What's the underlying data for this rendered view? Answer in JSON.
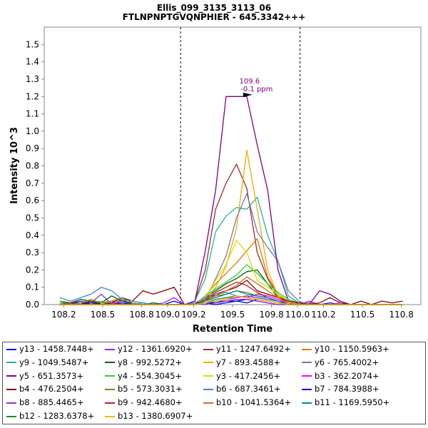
{
  "chart_data": {
    "type": "line",
    "title": "Ellis_099_3135_3113_06",
    "subtitle": "FTLNPNPTGVQNPHIER - 645.3342+++",
    "xlabel": "Retention Time",
    "ylabel": "Intensity 10^3",
    "xlim": [
      108.05,
      110.95
    ],
    "ylim": [
      0,
      1.6
    ],
    "x_ticks": [
      "108.2",
      "108.5",
      "108.8",
      "109.0",
      "109.2",
      "109.5",
      "109.8",
      "110.0",
      "110.2",
      "110.5",
      "110.8"
    ],
    "y_ticks": [
      "0.0",
      "0.1",
      "0.2",
      "0.3",
      "0.4",
      "0.5",
      "0.6",
      "0.7",
      "0.8",
      "0.9",
      "1.0",
      "1.1",
      "1.2",
      "1.3",
      "1.4",
      "1.5"
    ],
    "boundaries": [
      109.1,
      110.02
    ],
    "annotation": {
      "x": 109.62,
      "y": 1.21,
      "line1": "109.6",
      "line2": "-0.1 ppm",
      "color": "#800080"
    },
    "x": [
      108.17,
      108.25,
      108.33,
      108.41,
      108.49,
      108.57,
      108.65,
      108.73,
      108.81,
      108.89,
      108.97,
      109.05,
      109.13,
      109.21,
      109.29,
      109.37,
      109.45,
      109.53,
      109.61,
      109.69,
      109.77,
      109.85,
      109.93,
      110.01,
      110.09,
      110.17,
      110.25,
      110.33,
      110.41,
      110.49,
      110.57,
      110.65,
      110.73,
      110.81
    ],
    "series": [
      {
        "name": "y13 - 1458.7448+",
        "color": "#0000dd",
        "values": [
          0.01,
          0,
          0.02,
          0,
          0.01,
          0.02,
          0,
          0.01,
          0,
          0.01,
          0,
          0.02,
          0,
          0,
          0.01,
          0,
          0.01,
          0.02,
          0.01,
          0.03,
          0.02,
          0.01,
          0,
          0.01,
          0,
          0,
          0.01,
          0,
          0,
          0,
          0,
          0,
          0,
          0
        ]
      },
      {
        "name": "y12 - 1361.6920+",
        "color": "#8a2be2",
        "values": [
          0,
          0.01,
          0.02,
          0.01,
          0.06,
          0,
          0.02,
          0,
          0.01,
          0,
          0.01,
          0.04,
          0,
          0.01,
          0,
          0.02,
          0.03,
          0.04,
          0.05,
          0.04,
          0.03,
          0.02,
          0.01,
          0,
          0.02,
          0,
          0,
          0.01,
          0,
          0,
          0,
          0,
          0,
          0
        ]
      },
      {
        "name": "y11 - 1247.6492+",
        "color": "#a52a2a",
        "values": [
          0,
          0,
          0,
          0.01,
          0,
          0,
          0.03,
          0,
          0,
          0,
          0,
          0,
          0,
          0.02,
          0.2,
          0.55,
          0.7,
          0.81,
          0.67,
          0.3,
          0.15,
          0.05,
          0.02,
          0,
          0.01,
          0,
          0,
          0,
          0,
          0,
          0,
          0,
          0,
          0
        ]
      },
      {
        "name": "y10 - 1150.5963+",
        "color": "#e07b00",
        "values": [
          0.01,
          0,
          0.01,
          0,
          0,
          0.02,
          0,
          0,
          0,
          0,
          0,
          0,
          0,
          0,
          0.05,
          0.12,
          0.18,
          0.24,
          0.31,
          0.38,
          0.16,
          0.06,
          0.02,
          0,
          0,
          0,
          0,
          0,
          0,
          0,
          0,
          0,
          0,
          0
        ]
      },
      {
        "name": "y9 - 1049.5487+",
        "color": "#20b2aa",
        "values": [
          0.01,
          0,
          0.01,
          0.02,
          0,
          0,
          0.01,
          0,
          0.01,
          0,
          0,
          0,
          0,
          0.02,
          0.15,
          0.42,
          0.51,
          0.56,
          0.55,
          0.62,
          0.4,
          0.25,
          0.05,
          0.01,
          0,
          0,
          0,
          0,
          0,
          0,
          0,
          0,
          0,
          0
        ]
      },
      {
        "name": "y8 - 992.5272+",
        "color": "#006400",
        "values": [
          0.02,
          0.01,
          0.03,
          0.02,
          0.01,
          0.05,
          0.02,
          0.01,
          0,
          0.01,
          0,
          0,
          0,
          0,
          0.04,
          0.08,
          0.12,
          0.15,
          0.19,
          0.2,
          0.12,
          0.04,
          0.01,
          0,
          0,
          0,
          0,
          0,
          0,
          0,
          0,
          0,
          0,
          0
        ]
      },
      {
        "name": "y7 - 893.4588+",
        "color": "#ffa500",
        "values": [
          0,
          0,
          0,
          0,
          0,
          0,
          0,
          0,
          0,
          0,
          0,
          0,
          0,
          0,
          0.02,
          0.1,
          0.22,
          0.44,
          0.89,
          0.55,
          0.2,
          0.05,
          0.01,
          0,
          0,
          0,
          0,
          0,
          0,
          0,
          0,
          0,
          0,
          0
        ]
      },
      {
        "name": "y6 - 765.4002+",
        "color": "#7777bb",
        "values": [
          0,
          0,
          0,
          0,
          0,
          0,
          0,
          0,
          0,
          0,
          0,
          0,
          0,
          0,
          0.03,
          0.15,
          0.28,
          0.5,
          0.64,
          0.42,
          0.33,
          0.25,
          0.08,
          0.02,
          0,
          0,
          0,
          0,
          0,
          0,
          0,
          0,
          0,
          0
        ]
      },
      {
        "name": "y5 - 651.3573+",
        "color": "#800080",
        "values": [
          0,
          0,
          0.01,
          0,
          0,
          0.01,
          0,
          0,
          0,
          0,
          0,
          0,
          0,
          0.02,
          0.31,
          0.66,
          1.2,
          1.2,
          1.2,
          0.92,
          0.66,
          0.2,
          0.02,
          0.01,
          0,
          0.08,
          0.06,
          0.02,
          0,
          0,
          0,
          0,
          0,
          0
        ]
      },
      {
        "name": "y4 - 554.3045+",
        "color": "#32cd32",
        "values": [
          0.01,
          0,
          0,
          0.01,
          0.02,
          0,
          0.01,
          0,
          0.01,
          0,
          0,
          0,
          0,
          0,
          0.05,
          0.09,
          0.13,
          0.17,
          0.23,
          0.18,
          0.12,
          0.07,
          0.03,
          0.01,
          0,
          0,
          0,
          0,
          0,
          0,
          0,
          0,
          0,
          0
        ]
      },
      {
        "name": "y3 - 417.2456+",
        "color": "#dddd00",
        "values": [
          0,
          0,
          0,
          0,
          0,
          0,
          0,
          0,
          0,
          0,
          0,
          0,
          0,
          0,
          0.04,
          0.14,
          0.23,
          0.37,
          0.3,
          0.14,
          0.1,
          0.06,
          0.02,
          0,
          0,
          0,
          0,
          0,
          0,
          0,
          0,
          0,
          0,
          0
        ]
      },
      {
        "name": "b3 - 362.2074+",
        "color": "#ff00ff",
        "values": [
          0,
          0,
          0,
          0,
          0,
          0.01,
          0,
          0,
          0,
          0,
          0,
          0,
          0,
          0,
          0.01,
          0.02,
          0.03,
          0.05,
          0.04,
          0.06,
          0.05,
          0.03,
          0.01,
          0,
          0,
          0,
          0,
          0,
          0,
          0,
          0,
          0,
          0,
          0
        ]
      },
      {
        "name": "b4 - 476.2504+",
        "color": "#8b0000",
        "values": [
          0,
          0.01,
          0,
          0.02,
          0,
          0.01,
          0.04,
          0.02,
          0.08,
          0.06,
          0.08,
          0.1,
          0,
          0.01,
          0.02,
          0.06,
          0.08,
          0.1,
          0.14,
          0.08,
          0.06,
          0.04,
          0.02,
          0.01,
          0,
          0.01,
          0.04,
          0.01,
          0,
          0.02,
          0,
          0.02,
          0.01,
          0.02
        ]
      },
      {
        "name": "b5 - 573.3031+",
        "color": "#6b8e23",
        "values": [
          0.02,
          0,
          0.01,
          0.03,
          0.01,
          0.02,
          0.04,
          0.01,
          0,
          0,
          0,
          0,
          0,
          0,
          0.03,
          0.05,
          0.06,
          0.08,
          0.07,
          0.05,
          0.04,
          0.02,
          0,
          0,
          0,
          0,
          0,
          0,
          0,
          0,
          0,
          0,
          0,
          0
        ]
      },
      {
        "name": "b6 - 687.3461+",
        "color": "#4682e6",
        "values": [
          0.04,
          0.02,
          0.04,
          0.06,
          0.1,
          0.08,
          0.03,
          0.02,
          0.01,
          0,
          0,
          0,
          0,
          0.01,
          0.04,
          0.06,
          0.07,
          0.05,
          0.04,
          0.03,
          0.02,
          0.01,
          0,
          0,
          0,
          0,
          0,
          0,
          0,
          0,
          0,
          0,
          0,
          0
        ]
      },
      {
        "name": "b7 - 784.3988+",
        "color": "#0000cd",
        "values": [
          0,
          0,
          0,
          0.01,
          0,
          0,
          0.01,
          0,
          0,
          0,
          0,
          0,
          0,
          0,
          0.01,
          0.01,
          0.02,
          0.02,
          0.03,
          0.02,
          0.01,
          0,
          0,
          0,
          0,
          0,
          0,
          0,
          0,
          0,
          0,
          0,
          0,
          0
        ]
      },
      {
        "name": "b8 - 885.4465+",
        "color": "#9932cc",
        "values": [
          0,
          0,
          0,
          0,
          0,
          0,
          0,
          0,
          0,
          0,
          0,
          0,
          0,
          0,
          0.01,
          0.02,
          0.02,
          0.03,
          0.03,
          0.02,
          0.01,
          0,
          0,
          0,
          0,
          0,
          0,
          0,
          0,
          0,
          0,
          0,
          0,
          0
        ]
      },
      {
        "name": "b9 - 942.4680+",
        "color": "#b22222",
        "values": [
          0,
          0,
          0,
          0,
          0,
          0,
          0,
          0,
          0,
          0,
          0,
          0,
          0,
          0,
          0.03,
          0.07,
          0.1,
          0.13,
          0.11,
          0.07,
          0.04,
          0.02,
          0,
          0,
          0,
          0,
          0,
          0,
          0,
          0,
          0,
          0,
          0,
          0
        ]
      },
      {
        "name": "b10 - 1041.5364+",
        "color": "#d2691e",
        "values": [
          0,
          0,
          0,
          0,
          0,
          0,
          0,
          0,
          0,
          0,
          0,
          0,
          0,
          0,
          0.02,
          0.05,
          0.08,
          0.11,
          0.16,
          0.12,
          0.08,
          0.04,
          0.01,
          0,
          0,
          0,
          0,
          0,
          0,
          0,
          0,
          0,
          0,
          0
        ]
      },
      {
        "name": "b11 - 1169.5950+",
        "color": "#008b8b",
        "values": [
          0,
          0,
          0,
          0,
          0,
          0,
          0,
          0,
          0,
          0,
          0,
          0,
          0,
          0,
          0.02,
          0.04,
          0.06,
          0.08,
          0.06,
          0.05,
          0.04,
          0.02,
          0,
          0,
          0,
          0,
          0,
          0,
          0,
          0,
          0,
          0,
          0,
          0
        ]
      },
      {
        "name": "b12 - 1283.6378+",
        "color": "#228b22",
        "values": [
          0,
          0,
          0,
          0,
          0,
          0,
          0,
          0,
          0,
          0,
          0,
          0,
          0,
          0,
          0.01,
          0.03,
          0.04,
          0.05,
          0.04,
          0.03,
          0.02,
          0.01,
          0,
          0,
          0,
          0,
          0,
          0,
          0,
          0,
          0,
          0,
          0,
          0
        ]
      },
      {
        "name": "b13 - 1380.6907+",
        "color": "#ffb000",
        "values": [
          0,
          0,
          0,
          0,
          0,
          0,
          0,
          0,
          0,
          0,
          0,
          0,
          0,
          0,
          0.01,
          0.02,
          0.03,
          0.05,
          0.04,
          0.03,
          0.02,
          0.01,
          0,
          0,
          0,
          0,
          0,
          0,
          0,
          0,
          0,
          0,
          0,
          0
        ]
      }
    ]
  }
}
